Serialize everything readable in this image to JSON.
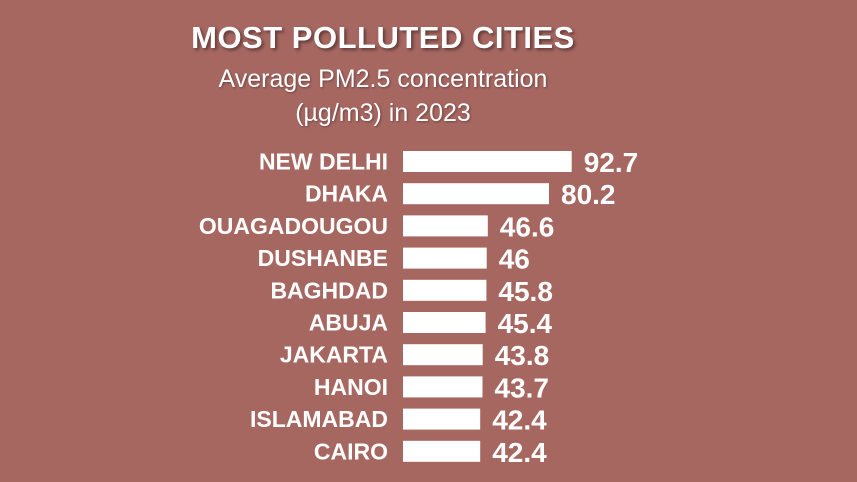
{
  "colors": {
    "background": "#a76761",
    "bar": "#ffffff",
    "text": "#ffffff"
  },
  "chart_data": {
    "type": "bar",
    "orientation": "horizontal",
    "title": "MOST POLLUTED CITIES",
    "subtitle_line1": "Average PM2.5 concentration",
    "subtitle_line2": "(µg/m3) in 2023",
    "categories": [
      "NEW DELHI",
      "DHAKA",
      "OUAGADOUGOU",
      "DUSHANBE",
      "BAGHDAD",
      "ABUJA",
      "JAKARTA",
      "HANOI",
      "ISLAMABAD",
      "CAIRO"
    ],
    "values": [
      92.7,
      80.2,
      46.6,
      46,
      45.8,
      45.4,
      43.8,
      43.7,
      42.4,
      42.4
    ],
    "value_labels": [
      "92.7",
      "80.2",
      "46.6",
      "46",
      "45.8",
      "45.4",
      "43.8",
      "43.7",
      "42.4",
      "42.4"
    ],
    "xlabel": "",
    "ylabel": "",
    "grid": false,
    "legend": "none"
  }
}
